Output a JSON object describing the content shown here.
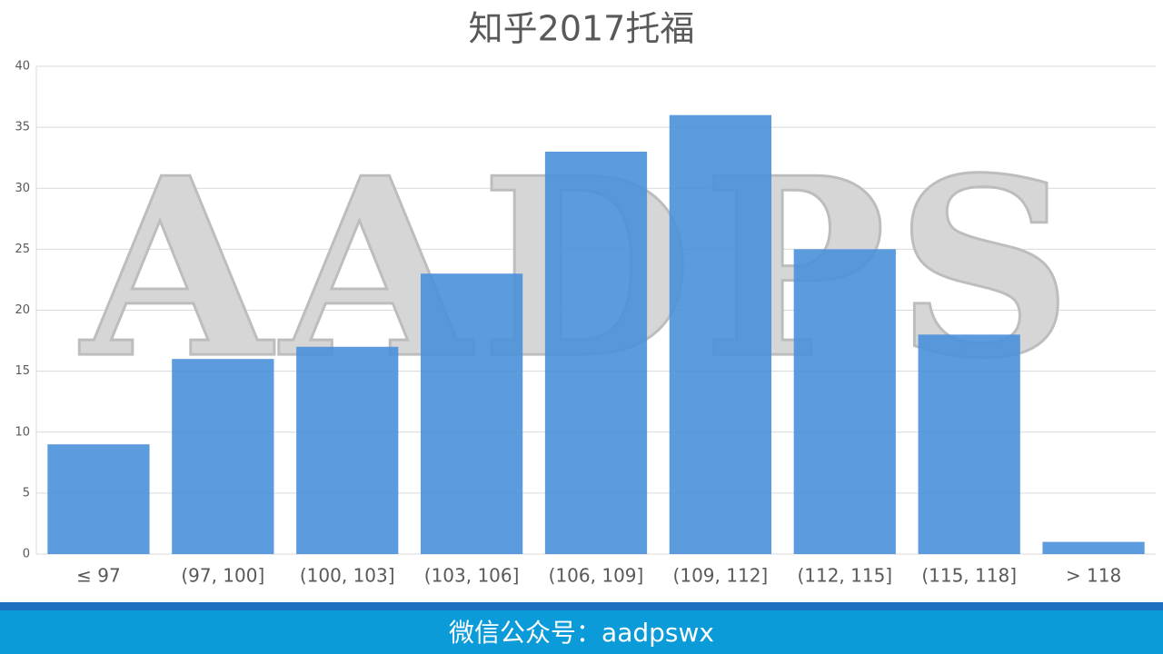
{
  "chart_data": {
    "type": "bar",
    "title": "知乎2017托福",
    "categories": [
      "≤ 97",
      "(97, 100]",
      "(100, 103]",
      "(103, 106]",
      "(106, 109]",
      "(109, 112]",
      "(112, 115]",
      "(115, 118]",
      "> 118"
    ],
    "values": [
      9,
      16,
      17,
      23,
      33,
      36,
      25,
      18,
      1
    ],
    "color": "#4a90d9",
    "ylim": [
      0,
      40
    ],
    "yticks": [
      0,
      5,
      10,
      15,
      20,
      25,
      30,
      35,
      40
    ],
    "grid": true,
    "watermark": "AADPS",
    "footer": "微信公众号：aadpswx"
  }
}
